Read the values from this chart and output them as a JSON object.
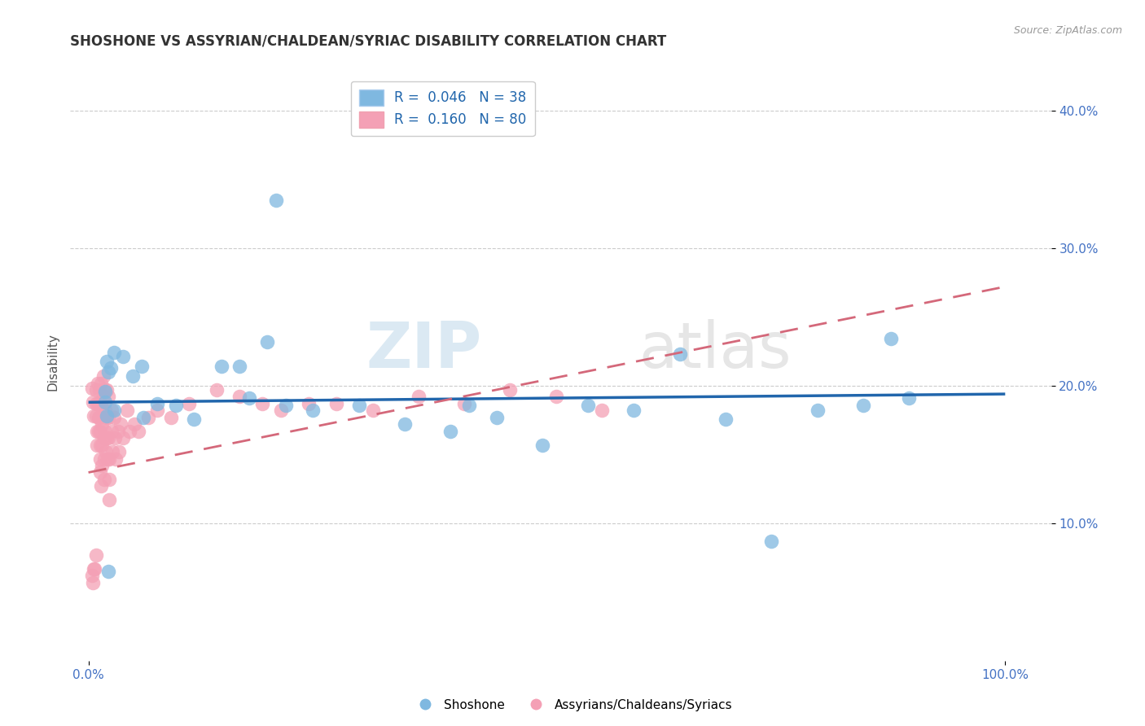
{
  "title": "SHOSHONE VS ASSYRIAN/CHALDEAN/SYRIAC DISABILITY CORRELATION CHART",
  "source": "Source: ZipAtlas.com",
  "ylabel": "Disability",
  "xlim": [
    -0.02,
    1.05
  ],
  "ylim": [
    0.0,
    0.435
  ],
  "ytick_vals": [
    0.1,
    0.2,
    0.3,
    0.4
  ],
  "ytick_labels": [
    "10.0%",
    "20.0%",
    "30.0%",
    "40.0%"
  ],
  "xtick_vals": [
    0.0,
    1.0
  ],
  "xtick_labels": [
    "0.0%",
    "100.0%"
  ],
  "blue_color": "#7fb8e0",
  "pink_color": "#f4a0b5",
  "blue_line_color": "#2166ac",
  "pink_line_color": "#d4687a",
  "watermark_zip": "ZIP",
  "watermark_atlas": "atlas",
  "background_color": "#ffffff",
  "blue_line_x0": 0.0,
  "blue_line_y0": 0.188,
  "blue_line_x1": 1.0,
  "blue_line_y1": 0.194,
  "pink_line_x0": 0.0,
  "pink_line_y0": 0.137,
  "pink_line_x1": 1.0,
  "pink_line_y1": 0.272,
  "blue_points": [
    [
      0.018,
      0.196
    ],
    [
      0.018,
      0.188
    ],
    [
      0.022,
      0.21
    ],
    [
      0.02,
      0.178
    ],
    [
      0.028,
      0.224
    ],
    [
      0.02,
      0.218
    ],
    [
      0.024,
      0.213
    ],
    [
      0.028,
      0.182
    ],
    [
      0.038,
      0.221
    ],
    [
      0.048,
      0.207
    ],
    [
      0.058,
      0.214
    ],
    [
      0.075,
      0.187
    ],
    [
      0.095,
      0.186
    ],
    [
      0.145,
      0.214
    ],
    [
      0.115,
      0.176
    ],
    [
      0.165,
      0.214
    ],
    [
      0.195,
      0.232
    ],
    [
      0.205,
      0.335
    ],
    [
      0.215,
      0.186
    ],
    [
      0.245,
      0.182
    ],
    [
      0.295,
      0.186
    ],
    [
      0.345,
      0.172
    ],
    [
      0.395,
      0.167
    ],
    [
      0.415,
      0.186
    ],
    [
      0.445,
      0.177
    ],
    [
      0.495,
      0.157
    ],
    [
      0.545,
      0.186
    ],
    [
      0.595,
      0.182
    ],
    [
      0.645,
      0.223
    ],
    [
      0.695,
      0.176
    ],
    [
      0.745,
      0.087
    ],
    [
      0.795,
      0.182
    ],
    [
      0.845,
      0.186
    ],
    [
      0.875,
      0.234
    ],
    [
      0.895,
      0.191
    ],
    [
      0.022,
      0.065
    ],
    [
      0.06,
      0.177
    ],
    [
      0.175,
      0.191
    ]
  ],
  "pink_points": [
    [
      0.004,
      0.198
    ],
    [
      0.005,
      0.188
    ],
    [
      0.006,
      0.178
    ],
    [
      0.008,
      0.197
    ],
    [
      0.008,
      0.187
    ],
    [
      0.008,
      0.178
    ],
    [
      0.009,
      0.167
    ],
    [
      0.009,
      0.157
    ],
    [
      0.01,
      0.202
    ],
    [
      0.01,
      0.187
    ],
    [
      0.011,
      0.177
    ],
    [
      0.011,
      0.167
    ],
    [
      0.012,
      0.197
    ],
    [
      0.012,
      0.187
    ],
    [
      0.012,
      0.177
    ],
    [
      0.013,
      0.167
    ],
    [
      0.013,
      0.157
    ],
    [
      0.013,
      0.147
    ],
    [
      0.013,
      0.137
    ],
    [
      0.014,
      0.127
    ],
    [
      0.014,
      0.202
    ],
    [
      0.014,
      0.187
    ],
    [
      0.015,
      0.172
    ],
    [
      0.015,
      0.157
    ],
    [
      0.015,
      0.142
    ],
    [
      0.016,
      0.207
    ],
    [
      0.016,
      0.192
    ],
    [
      0.016,
      0.177
    ],
    [
      0.017,
      0.162
    ],
    [
      0.017,
      0.147
    ],
    [
      0.017,
      0.132
    ],
    [
      0.018,
      0.197
    ],
    [
      0.018,
      0.182
    ],
    [
      0.018,
      0.167
    ],
    [
      0.019,
      0.152
    ],
    [
      0.02,
      0.197
    ],
    [
      0.02,
      0.177
    ],
    [
      0.02,
      0.162
    ],
    [
      0.021,
      0.147
    ],
    [
      0.022,
      0.192
    ],
    [
      0.022,
      0.177
    ],
    [
      0.022,
      0.162
    ],
    [
      0.023,
      0.147
    ],
    [
      0.023,
      0.132
    ],
    [
      0.023,
      0.117
    ],
    [
      0.025,
      0.182
    ],
    [
      0.025,
      0.167
    ],
    [
      0.026,
      0.152
    ],
    [
      0.028,
      0.177
    ],
    [
      0.029,
      0.162
    ],
    [
      0.03,
      0.147
    ],
    [
      0.032,
      0.167
    ],
    [
      0.033,
      0.152
    ],
    [
      0.035,
      0.172
    ],
    [
      0.038,
      0.162
    ],
    [
      0.042,
      0.182
    ],
    [
      0.045,
      0.167
    ],
    [
      0.05,
      0.172
    ],
    [
      0.055,
      0.167
    ],
    [
      0.065,
      0.177
    ],
    [
      0.075,
      0.182
    ],
    [
      0.09,
      0.177
    ],
    [
      0.11,
      0.187
    ],
    [
      0.14,
      0.197
    ],
    [
      0.165,
      0.192
    ],
    [
      0.19,
      0.187
    ],
    [
      0.21,
      0.182
    ],
    [
      0.24,
      0.187
    ],
    [
      0.27,
      0.187
    ],
    [
      0.31,
      0.182
    ],
    [
      0.36,
      0.192
    ],
    [
      0.41,
      0.187
    ],
    [
      0.46,
      0.197
    ],
    [
      0.51,
      0.192
    ],
    [
      0.56,
      0.182
    ],
    [
      0.004,
      0.062
    ],
    [
      0.005,
      0.057
    ],
    [
      0.006,
      0.067
    ],
    [
      0.007,
      0.067
    ],
    [
      0.008,
      0.077
    ]
  ],
  "grid_color": "#cccccc",
  "title_fontsize": 12,
  "axis_label_fontsize": 11,
  "tick_fontsize": 11,
  "tick_color": "#4472c4",
  "legend_label_color": "#2166ac"
}
